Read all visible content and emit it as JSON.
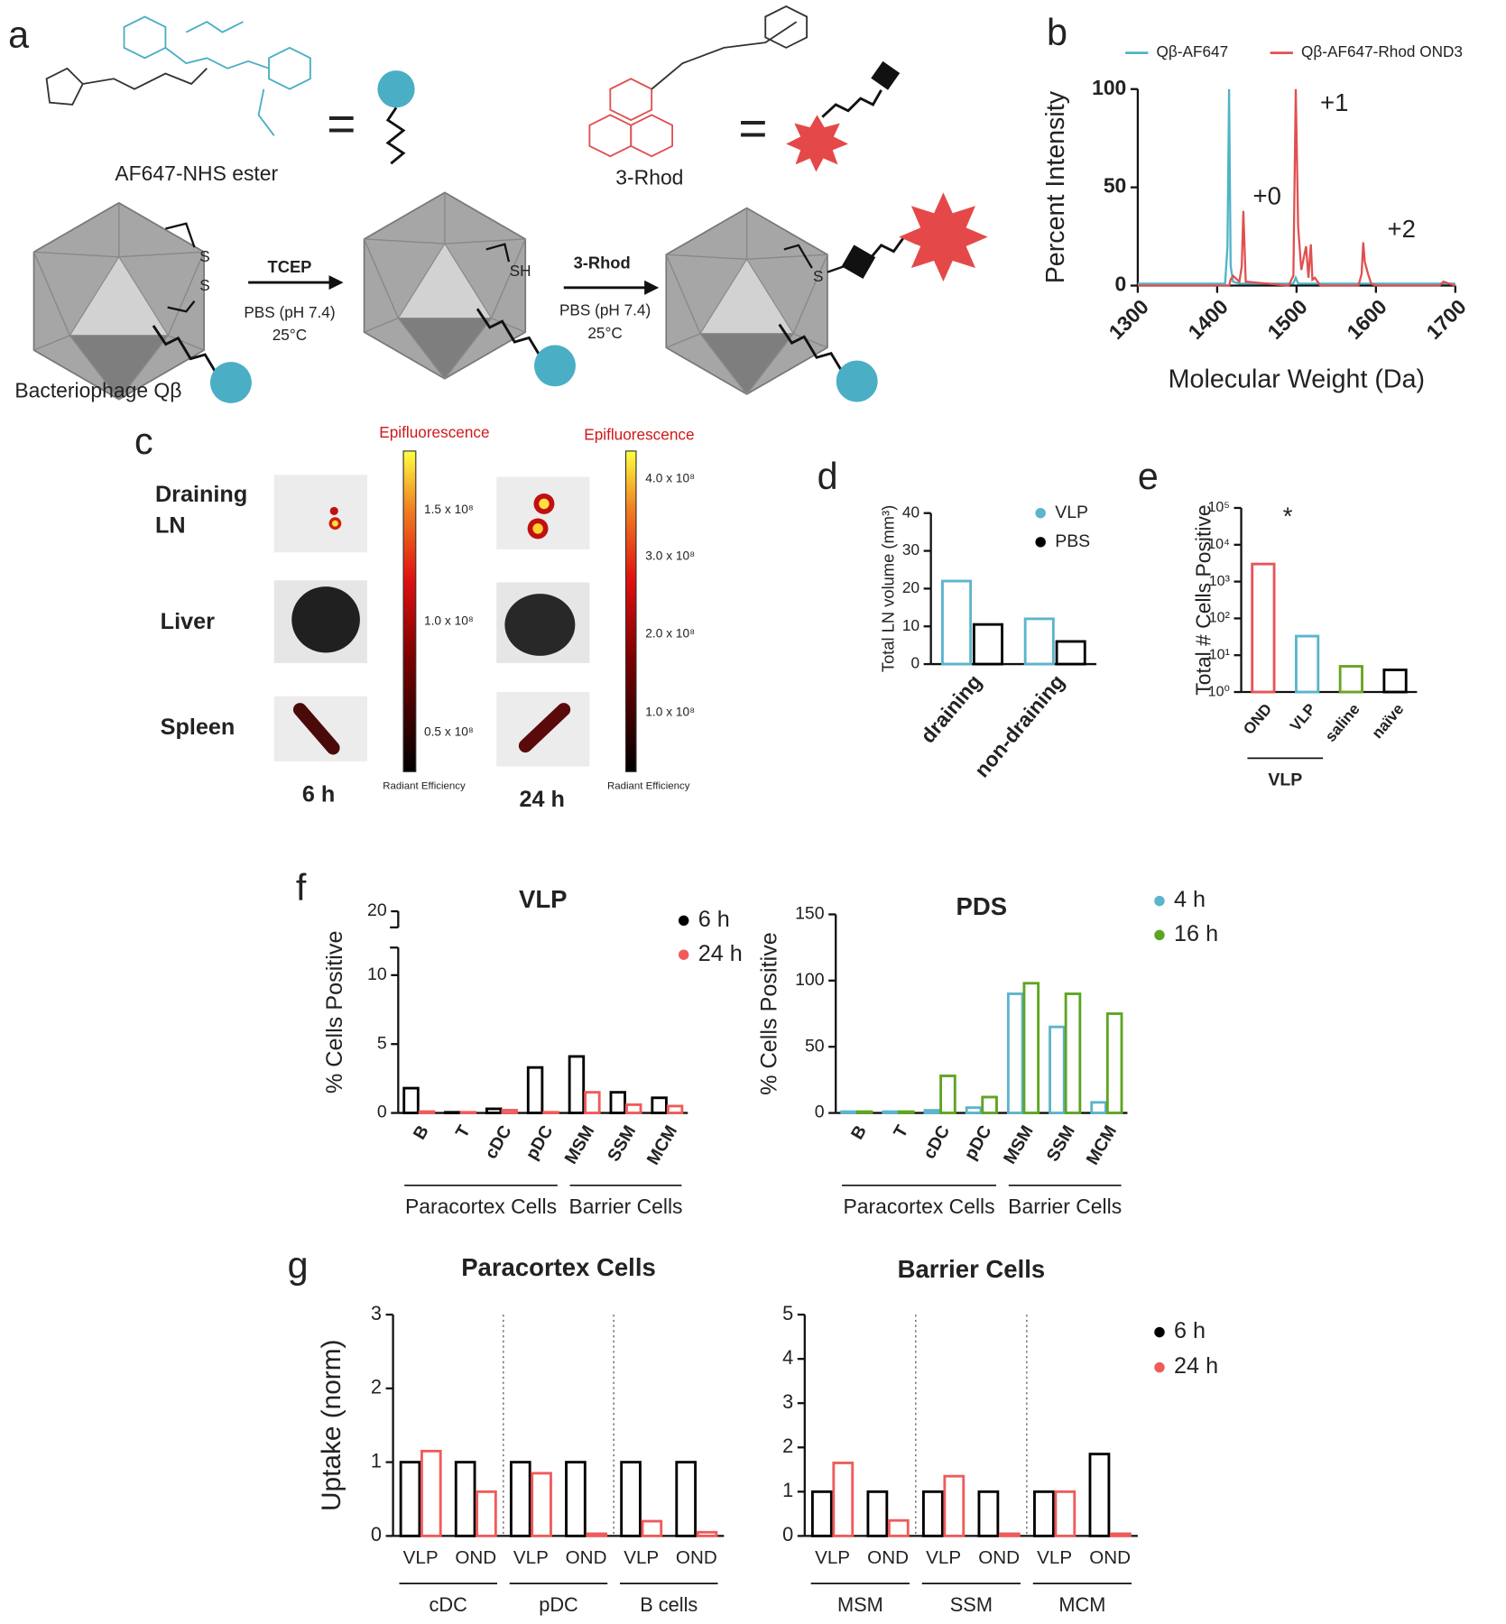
{
  "figure": {
    "panel_labels": [
      "a",
      "b",
      "c",
      "d",
      "e",
      "f",
      "g"
    ],
    "scheme": {
      "dye_label": "AF647-NHS ester",
      "equals_dye": "=",
      "rhod_label": "3-Rhod",
      "equals_rhod": "=",
      "phage_label": "Bacteriophage Qβ",
      "step1_reagent": "TCEP",
      "step1_buffer": "PBS (pH 7.4)",
      "step1_temp": "25°C",
      "step2_reagent": "3-Rhod",
      "step2_buffer": "PBS (pH 7.4)",
      "step2_temp": "25°C",
      "thiol": "SH",
      "disulfide_s1": "S",
      "disulfide_s2": "S",
      "thioether_s": "S"
    },
    "imaging": {
      "rows": [
        "Draining LN",
        "Liver",
        "Spleen"
      ],
      "times": [
        "6 h",
        "24 h"
      ],
      "colorbar_title": [
        "Epifluorescence",
        "Epifluorescence"
      ],
      "colorbar_unit": [
        "Radiant Efficiency",
        "Radiant Efficiency"
      ],
      "colorbar_ticks": [
        [
          "1.5 x 10⁸",
          "1.0 x 10⁸",
          "0.5 x 10⁸"
        ],
        [
          "4.0 x 10⁸",
          "3.0 x 10⁸",
          "2.0 x 10⁸",
          "1.0 x 10⁸"
        ]
      ]
    }
  },
  "chart_data": [
    {
      "type": "line",
      "xlabel": "Molecular Weight (Da)",
      "ylabel": "Percent Intensity",
      "x": [
        1300,
        1410,
        1413,
        1415,
        1417,
        1420,
        1428,
        1431,
        1433,
        1436,
        1490,
        1496,
        1499,
        1502,
        1506,
        1512,
        1515,
        1518,
        1520,
        1523,
        1530,
        1578,
        1582,
        1584,
        1586,
        1590,
        1594,
        1600,
        1680,
        1685,
        1700
      ],
      "series": [
        {
          "name": "Qβ-AF647",
          "color": "#4fb3c8",
          "values": [
            1,
            1,
            20,
            100,
            10,
            2,
            1,
            1,
            1,
            1,
            1,
            1,
            4,
            1,
            1,
            1,
            1,
            1,
            1,
            1,
            1,
            1,
            1,
            1,
            1,
            1,
            1,
            1,
            1,
            1,
            1
          ]
        },
        {
          "name": "Qβ-AF647-Rhod OND3",
          "color": "#e05050",
          "values": [
            0,
            0,
            0,
            0,
            3,
            5,
            2,
            10,
            38,
            2,
            0,
            5,
            100,
            30,
            8,
            20,
            4,
            21,
            3,
            4,
            0,
            0,
            6,
            22,
            12,
            6,
            1,
            0,
            0,
            2,
            0
          ]
        }
      ],
      "annotations": [
        "+0",
        "+1",
        "+2"
      ],
      "xlim": [
        1300,
        1700
      ],
      "xticks": [
        1300,
        1400,
        1500,
        1600,
        1700
      ],
      "ylim": [
        0,
        100
      ],
      "yticks": [
        0,
        50,
        100
      ],
      "legend": "top"
    },
    {
      "type": "bar",
      "ylabel": "Total LN volume (mm³)",
      "categories": [
        "draining",
        "non-draining"
      ],
      "series": [
        {
          "name": "VLP",
          "color": "#5bb5cc",
          "values": [
            22,
            12
          ]
        },
        {
          "name": "PBS",
          "color": "#000000",
          "values": [
            10.5,
            6
          ]
        }
      ],
      "ylim": [
        0,
        40
      ],
      "yticks": [
        0,
        10,
        20,
        30,
        40
      ],
      "legend": "upper right"
    },
    {
      "type": "bar",
      "ylabel": "Total # Cells Positive",
      "categories": [
        "OND",
        "VLP",
        "saline",
        "naïve"
      ],
      "values": [
        3000,
        33,
        5,
        4
      ],
      "colors": [
        "#e8545a",
        "#5bb5cc",
        "#6aa520",
        "#000000"
      ],
      "annotations": [
        "*"
      ],
      "group_label": "VLP",
      "log_y": true,
      "ylim": [
        1,
        100000
      ],
      "yticks": [
        {
          "value": 1,
          "label": "10⁰"
        },
        {
          "value": 10,
          "label": "10¹"
        },
        {
          "value": 100,
          "label": "10²"
        },
        {
          "value": 1000,
          "label": "10³"
        },
        {
          "value": 10000,
          "label": "10⁴"
        },
        {
          "value": 100000,
          "label": "10⁵"
        }
      ]
    },
    {
      "type": "bar",
      "title": "VLP",
      "ylabel": "% Cells Positive",
      "categories": [
        "B",
        "T",
        "cDC",
        "pDC",
        "MSM",
        "SSM",
        "MCM"
      ],
      "series": [
        {
          "name": "6 h",
          "color": "#000000",
          "values": [
            1.8,
            0.05,
            0.3,
            3.3,
            4.1,
            1.5,
            1.1
          ]
        },
        {
          "name": "24 h",
          "color": "#ef5b5b",
          "values": [
            0.1,
            0.05,
            0.2,
            0.05,
            1.5,
            0.6,
            0.5
          ]
        }
      ],
      "groups": [
        "Paracortex Cells",
        "Barrier Cells"
      ],
      "ylim": [
        0,
        20
      ],
      "ybreak": [
        12,
        19
      ],
      "yticks": [
        0,
        5,
        10,
        20
      ],
      "legend": "upper right"
    },
    {
      "type": "bar",
      "title": "PDS",
      "ylabel": "% Cells Positive",
      "categories": [
        "B",
        "T",
        "cDC",
        "pDC",
        "MSM",
        "SSM",
        "MCM"
      ],
      "series": [
        {
          "name": "4 h",
          "color": "#5bb5cc",
          "values": [
            1,
            1,
            2,
            4,
            90,
            65,
            8
          ]
        },
        {
          "name": "16 h",
          "color": "#5ea423",
          "values": [
            1,
            1,
            28,
            12,
            98,
            90,
            75
          ]
        }
      ],
      "groups": [
        "Paracortex Cells",
        "Barrier Cells"
      ],
      "ylim": [
        0,
        150
      ],
      "yticks": [
        0,
        50,
        100,
        150
      ],
      "legend": "upper right"
    },
    {
      "type": "bar",
      "title": "Paracortex Cells",
      "ylabel": "Uptake (norm)",
      "categories": [
        "VLP",
        "OND",
        "VLP",
        "OND",
        "VLP",
        "OND"
      ],
      "series": [
        {
          "color": "#000000",
          "values": [
            1.0,
            1.0,
            1.0,
            1.0,
            1.0,
            1.0
          ]
        },
        {
          "color": "#ef5b5b",
          "values": [
            1.15,
            0.6,
            0.85,
            0.03,
            0.2,
            0.05
          ]
        }
      ],
      "groups": [
        "cDC",
        "pDC",
        "B cells"
      ],
      "ylim": [
        0,
        3
      ],
      "yticks": [
        0,
        1,
        2,
        3
      ]
    },
    {
      "type": "bar",
      "title": "Barrier Cells",
      "categories": [
        "VLP",
        "OND",
        "VLP",
        "OND",
        "VLP",
        "OND"
      ],
      "series": [
        {
          "name": "6 h",
          "color": "#000000",
          "values": [
            1.0,
            1.0,
            1.0,
            1.0,
            1.0,
            1.85
          ]
        },
        {
          "name": "24 h",
          "color": "#ef5b5b",
          "values": [
            1.65,
            0.35,
            1.35,
            0.05,
            1.0,
            0.05
          ]
        }
      ],
      "groups": [
        "MSM",
        "SSM",
        "MCM"
      ],
      "ylim": [
        0,
        5
      ],
      "yticks": [
        0,
        1,
        2,
        3,
        4,
        5
      ],
      "legend": "upper right"
    }
  ]
}
